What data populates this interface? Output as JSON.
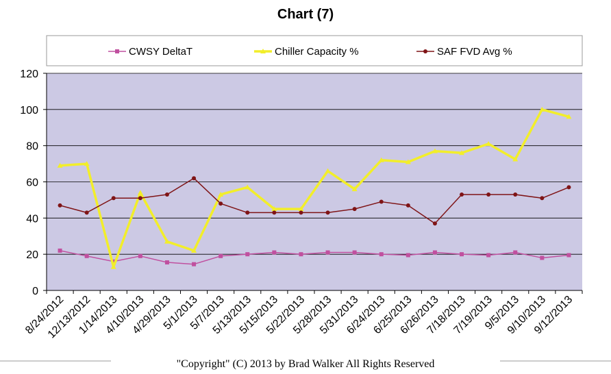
{
  "chart_data": {
    "type": "line",
    "title": "Chart (7)",
    "categories": [
      "8/24/2012",
      "12/13/2012",
      "1/14/2013",
      "4/10/2013",
      "4/29/2013",
      "5/1/2013",
      "5/7/2013",
      "5/13/2013",
      "5/15/2013",
      "5/22/2013",
      "5/28/2013",
      "5/31/2013",
      "6/24/2013",
      "6/25/2013",
      "6/26/2013",
      "7/18/2013",
      "7/19/2013",
      "9/5/2013",
      "9/10/2013",
      "9/12/2013"
    ],
    "ylim": [
      0,
      120
    ],
    "yticks": [
      0,
      20,
      40,
      60,
      80,
      100,
      120
    ],
    "grid": true,
    "legend_position": "top",
    "series": [
      {
        "name": "CWSY DeltaT",
        "color": "#c0509f",
        "marker": "square",
        "values": [
          22,
          19,
          16,
          19,
          15.5,
          14.5,
          19,
          20,
          21,
          20,
          21,
          21,
          20,
          19.5,
          21,
          20,
          19.5,
          21,
          18,
          19.5
        ]
      },
      {
        "name": "Chiller Capacity %",
        "color": "#f2ee2a",
        "marker": "triangle",
        "values": [
          69,
          70,
          13,
          54,
          27,
          22,
          53,
          57,
          45,
          45,
          66,
          56,
          72,
          71,
          77,
          76,
          81,
          72.5,
          100,
          96
        ]
      },
      {
        "name": "SAF FVD Avg %",
        "color": "#7f1416",
        "marker": "circle",
        "values": [
          47,
          43,
          51,
          51,
          53,
          62,
          48,
          43,
          43,
          43,
          43,
          45,
          49,
          47,
          37,
          53,
          53,
          53,
          51,
          57
        ]
      }
    ]
  },
  "footer": {
    "copyright": "\"Copyright\" (C) 2013 by Brad Walker  All Rights Reserved"
  },
  "colors": {
    "plot_background": "#ccc9e4",
    "gridline": "#000000"
  }
}
